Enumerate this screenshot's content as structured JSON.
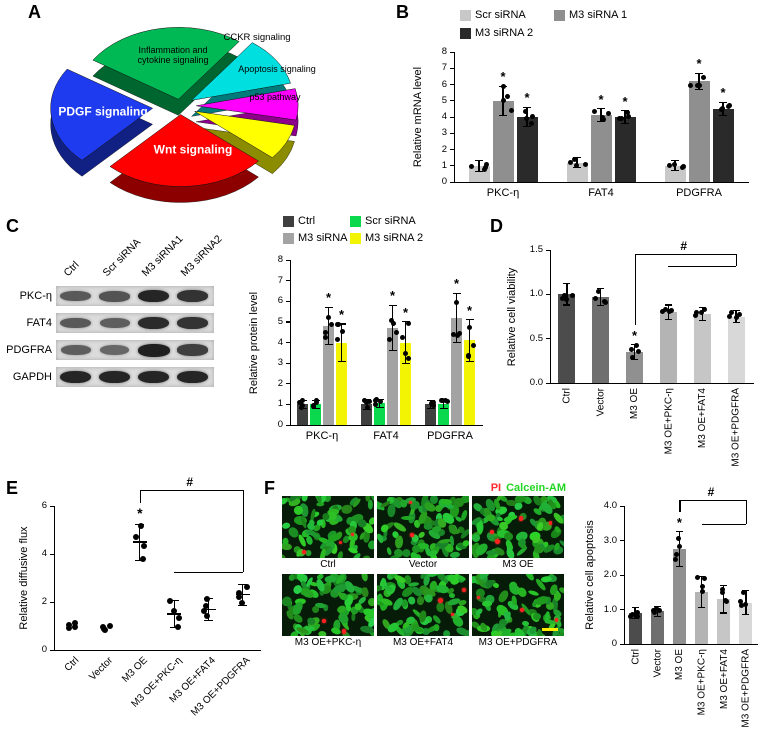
{
  "panels": {
    "A": {
      "label": "A"
    },
    "B": {
      "label": "B"
    },
    "C": {
      "label": "C"
    },
    "D": {
      "label": "D"
    },
    "E": {
      "label": "E"
    },
    "F": {
      "label": "F"
    }
  },
  "chart_data": [
    {
      "id": "pieA",
      "type": "pie",
      "start_angle_deg": -57,
      "slices": [
        {
          "label": "Inflammation and cytokine signaling",
          "percent": 26,
          "color": "#00b955",
          "text_color": "#000000"
        },
        {
          "label": "CCKR signaling",
          "percent": 11,
          "color": "#00dfdf",
          "text_color": "#000000"
        },
        {
          "label": "Apoptosis signaling",
          "percent": 7,
          "color": "#ff00ff",
          "text_color": "#000000"
        },
        {
          "label": "p53 pathway",
          "percent": 8,
          "color": "#ffff00",
          "text_color": "#000000"
        },
        {
          "label": "Wnt signaling",
          "percent": 26,
          "color": "#fe0000",
          "text_color": "#ffffff"
        },
        {
          "label": "PDGF signaling",
          "percent": 22,
          "color": "#1e3bef",
          "text_color": "#ffffff"
        }
      ]
    },
    {
      "id": "chartB",
      "type": "bar",
      "ylabel": "Relative mRNA level",
      "ylim": [
        0,
        8
      ],
      "yticks": [
        "0",
        "1",
        "2",
        "3",
        "4",
        "5",
        "6",
        "7",
        "8"
      ],
      "categories": [
        "PKC-η",
        "FAT4",
        "PDGFRA"
      ],
      "series": [
        {
          "name": "Scr siRNA",
          "color": "#c8c8c8",
          "values": [
            1.0,
            1.2,
            1.0
          ],
          "errors": [
            0.35,
            0.3,
            0.3
          ],
          "sig": [
            "",
            "",
            ""
          ]
        },
        {
          "name": "M3 siRNA 1",
          "color": "#8f8f8f",
          "values": [
            5.0,
            4.1,
            6.2
          ],
          "errors": [
            0.9,
            0.4,
            0.5
          ],
          "sig": [
            "*",
            "*",
            "*"
          ]
        },
        {
          "name": "M3 siRNA 2",
          "color": "#2a2a2a",
          "values": [
            4.0,
            4.0,
            4.5
          ],
          "errors": [
            0.6,
            0.4,
            0.4
          ],
          "sig": [
            "*",
            "*",
            "*"
          ]
        }
      ]
    },
    {
      "id": "chartC",
      "type": "bar",
      "ylabel": "Relative protein level",
      "ylim": [
        0,
        8
      ],
      "yticks": [
        "0",
        "1",
        "2",
        "3",
        "4",
        "5",
        "6",
        "7",
        "8"
      ],
      "categories": [
        "PKC-η",
        "FAT4",
        "PDGFRA"
      ],
      "series": [
        {
          "name": "Ctrl",
          "color": "#3f3f3f",
          "values": [
            1.0,
            1.0,
            1.0
          ],
          "errors": [
            0.2,
            0.25,
            0.2
          ],
          "sig": [
            "",
            "",
            ""
          ]
        },
        {
          "name": "Scr siRNA",
          "color": "#0ad94d",
          "values": [
            1.0,
            1.05,
            1.0
          ],
          "errors": [
            0.2,
            0.2,
            0.2
          ],
          "sig": [
            "",
            "",
            ""
          ]
        },
        {
          "name": "M3 siRNA 1",
          "color": "#a3a3a3",
          "values": [
            4.8,
            4.7,
            5.2
          ],
          "errors": [
            0.9,
            1.1,
            1.2
          ],
          "sig": [
            "*",
            "*",
            "*"
          ]
        },
        {
          "name": "M3 siRNA 2",
          "color": "#f3f304",
          "values": [
            4.0,
            4.0,
            4.1
          ],
          "errors": [
            0.9,
            1.0,
            1.0
          ],
          "sig": [
            "*",
            "*",
            "*"
          ]
        }
      ]
    },
    {
      "id": "chartD",
      "type": "bar",
      "ylabel": "Relative cell viability",
      "ylim": [
        0,
        1.5
      ],
      "yticks": [
        "0.0",
        "0.5",
        "1.0",
        "1.5"
      ],
      "categories": [
        "Ctrl",
        "Vector",
        "M3 OE",
        "M3 OE+PKC-η",
        "M3 OE+FAT4",
        "M3 OE+PDGFRA"
      ],
      "bar_colors": [
        "#4c4c4c",
        "#6f6f6f",
        "#909090",
        "#b4b4b4",
        "#c6c6c6",
        "#d8d8d8"
      ],
      "values": [
        1.0,
        0.97,
        0.35,
        0.8,
        0.78,
        0.75
      ],
      "errors": [
        0.12,
        0.1,
        0.08,
        0.08,
        0.07,
        0.07
      ],
      "sig": [
        "",
        "",
        "*",
        "",
        "",
        ""
      ],
      "comparison": {
        "symbol": "#",
        "from": "M3 OE",
        "to": [
          "M3 OE+PKC-η",
          "M3 OE+FAT4",
          "M3 OE+PDGFRA"
        ]
      }
    },
    {
      "id": "chartE",
      "type": "scatter",
      "ylabel": "Relative diffusive flux",
      "ylim": [
        0,
        6
      ],
      "yticks": [
        "0",
        "2",
        "4",
        "6"
      ],
      "categories": [
        "Ctrl",
        "Vector",
        "M3 OE",
        "M3 OE+PKC-η",
        "M3 OE+FAT4",
        "M3 OE+PDGFRA"
      ],
      "values": [
        1.0,
        0.9,
        4.5,
        1.5,
        1.7,
        2.3
      ],
      "spreads": [
        0.12,
        0.12,
        0.75,
        0.55,
        0.45,
        0.45
      ],
      "sig": [
        "",
        "",
        "*",
        "",
        "",
        ""
      ],
      "comparison": {
        "symbol": "#",
        "from": "M3 OE",
        "to": [
          "M3 OE+PKC-η",
          "M3 OE+FAT4",
          "M3 OE+PDGFRA"
        ]
      }
    },
    {
      "id": "chartF",
      "type": "bar",
      "ylabel": "Relative cell apoptosis",
      "ylim": [
        0,
        4
      ],
      "yticks": [
        "0",
        "1.0",
        "2.0",
        "3.0",
        "4.0"
      ],
      "categories": [
        "Ctrl",
        "Vector",
        "M3 OE",
        "M3 OE+PKC-η",
        "M3 OE+FAT4",
        "M3 OE+PDGFRA"
      ],
      "bar_colors": [
        "#4c4c4c",
        "#6f6f6f",
        "#909090",
        "#b4b4b4",
        "#c6c6c6",
        "#d8d8d8"
      ],
      "values": [
        0.9,
        0.95,
        2.75,
        1.5,
        1.3,
        1.2
      ],
      "errors": [
        0.15,
        0.15,
        0.5,
        0.45,
        0.4,
        0.35
      ],
      "sig": [
        "",
        "",
        "*",
        "",
        "",
        ""
      ],
      "comparison": {
        "symbol": "#",
        "from": "M3 OE",
        "to": [
          "M3 OE+PKC-η",
          "M3 OE+FAT4",
          "M3 OE+PDGFRA"
        ]
      }
    }
  ],
  "western_blot": {
    "lane_labels": [
      "Ctrl",
      "Scr siRNA",
      "M3 siRNA1",
      "M3 siRNA2"
    ],
    "rows": [
      {
        "protein": "PKC-η",
        "band_intensity": [
          0.55,
          0.6,
          0.95,
          0.85
        ]
      },
      {
        "protein": "FAT4",
        "band_intensity": [
          0.55,
          0.5,
          0.9,
          0.85
        ]
      },
      {
        "protein": "PDGFRA",
        "band_intensity": [
          0.5,
          0.45,
          1.0,
          0.75
        ]
      },
      {
        "protein": "GAPDH",
        "band_intensity": [
          0.95,
          0.95,
          0.95,
          0.95
        ]
      }
    ]
  },
  "microscopy": {
    "stains": [
      {
        "label": "PI",
        "color": "#ff2d2d"
      },
      {
        "label": "Calcein-AM",
        "color": "#23d523"
      }
    ],
    "image_labels": [
      "Ctrl",
      "Vector",
      "M3 OE",
      "M3 OE+PKC-η",
      "M3 OE+FAT4",
      "M3 OE+PDGFRA"
    ],
    "red_dot_counts": [
      3,
      2,
      4,
      2,
      3,
      3
    ]
  }
}
